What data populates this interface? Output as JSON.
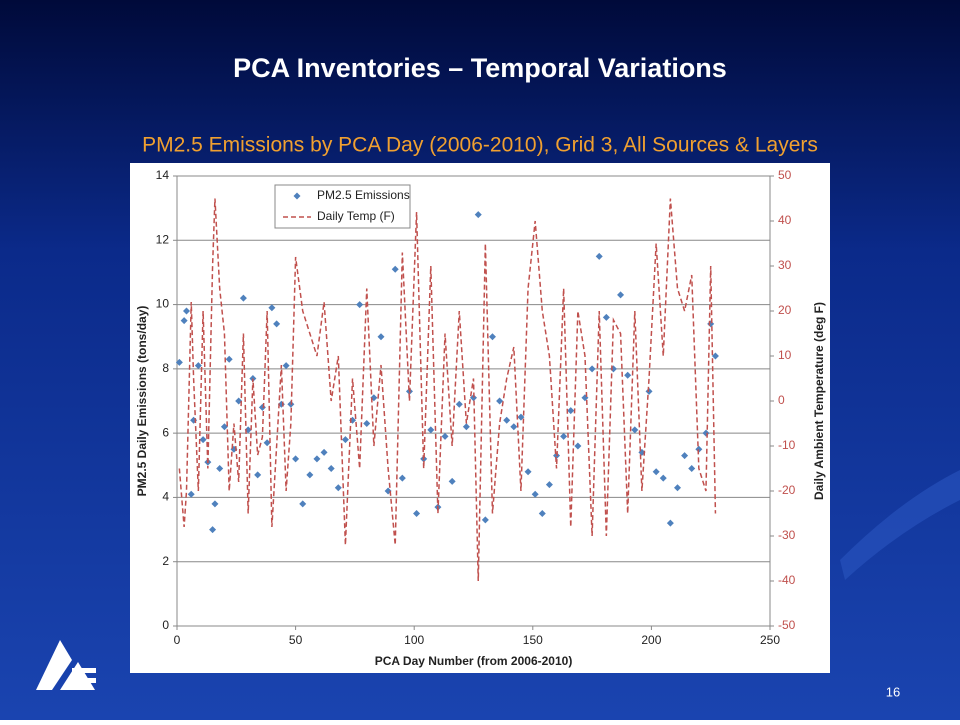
{
  "slide": {
    "title": "PCA Inventories – Temporal Variations",
    "page_number": "16"
  },
  "chart_data": {
    "type": "scatter",
    "title": "PM2.5 Emissions by PCA Day (2006-2010), Grid 3, All Sources & Layers",
    "x_label": "PCA Day Number (from 2006-2010)",
    "y_label": "PM2.5 Daily Emissions (tons/day)",
    "y2_label": "Daily Ambient Temperature (deg F)",
    "x": [
      1,
      3,
      4,
      6,
      7,
      9,
      11,
      13,
      15,
      16,
      18,
      20,
      22,
      24,
      26,
      28,
      30,
      32,
      34,
      36,
      38,
      40,
      42,
      44,
      46,
      48,
      50,
      53,
      56,
      59,
      62,
      65,
      68,
      71,
      74,
      77,
      80,
      83,
      86,
      89,
      92,
      95,
      98,
      101,
      104,
      107,
      110,
      113,
      116,
      119,
      122,
      125,
      127,
      130,
      133,
      136,
      139,
      142,
      145,
      148,
      151,
      154,
      157,
      160,
      163,
      166,
      169,
      172,
      175,
      178,
      181,
      184,
      187,
      190,
      193,
      196,
      199,
      202,
      205,
      208,
      211,
      214,
      217,
      220,
      223,
      225,
      227
    ],
    "series": [
      {
        "name": "PM2.5 Emissions",
        "color": "#4f81bd",
        "marker": "diamond",
        "values": [
          8.2,
          9.5,
          9.8,
          4.1,
          6.4,
          8.1,
          5.8,
          5.1,
          3.0,
          3.8,
          4.9,
          6.2,
          8.3,
          5.5,
          7.0,
          10.2,
          6.1,
          7.7,
          4.7,
          6.8,
          5.7,
          9.9,
          9.4,
          6.9,
          8.1,
          6.9,
          5.2,
          3.8,
          4.7,
          5.2,
          5.4,
          4.9,
          4.3,
          5.8,
          6.4,
          10.0,
          6.3,
          7.1,
          9.0,
          4.2,
          11.1,
          4.6,
          7.3,
          3.5,
          5.2,
          6.1,
          3.7,
          5.9,
          4.5,
          6.9,
          6.2,
          7.1,
          12.8,
          3.3,
          9.0,
          7.0,
          6.4,
          6.2,
          6.5,
          4.8,
          4.1,
          3.5,
          4.4,
          5.3,
          5.9,
          6.7,
          5.6,
          7.1,
          8.0,
          11.5,
          9.6,
          8.0,
          10.3,
          7.8,
          6.1,
          5.4,
          7.3,
          4.8,
          4.6,
          3.2,
          4.3,
          5.3,
          4.9,
          5.5,
          6.0,
          9.4,
          8.4
        ]
      },
      {
        "name": "Daily Temp (F)",
        "color": "#c0504d",
        "marker": "dashed-line",
        "axis": "y2",
        "values": [
          -15,
          -28,
          -20,
          22,
          5,
          -20,
          20,
          -15,
          30,
          45,
          25,
          15,
          -20,
          -5,
          -18,
          15,
          -25,
          5,
          -12,
          -8,
          20,
          -28,
          -10,
          8,
          -20,
          -5,
          32,
          20,
          15,
          10,
          22,
          0,
          10,
          -32,
          5,
          -15,
          25,
          -10,
          8,
          -15,
          -32,
          33,
          0,
          42,
          -15,
          30,
          -25,
          15,
          -10,
          20,
          -5,
          5,
          -40,
          35,
          -25,
          -5,
          5,
          12,
          -20,
          25,
          40,
          20,
          10,
          -15,
          25,
          -28,
          20,
          10,
          -30,
          20,
          -30,
          18,
          15,
          -25,
          20,
          -20,
          5,
          35,
          10,
          45,
          25,
          20,
          28,
          -15,
          -20,
          30,
          -25
        ]
      }
    ],
    "xlim": [
      0,
      250
    ],
    "xticks": [
      0,
      50,
      100,
      150,
      200,
      250
    ],
    "ylim": [
      0,
      14
    ],
    "yticks": [
      0,
      2,
      4,
      6,
      8,
      10,
      12,
      14
    ],
    "y2lim": [
      -50,
      50
    ],
    "y2ticks": [
      -50,
      -40,
      -30,
      -20,
      -10,
      0,
      10,
      20,
      30,
      40,
      50
    ],
    "grid": true,
    "legend": "top-left"
  }
}
